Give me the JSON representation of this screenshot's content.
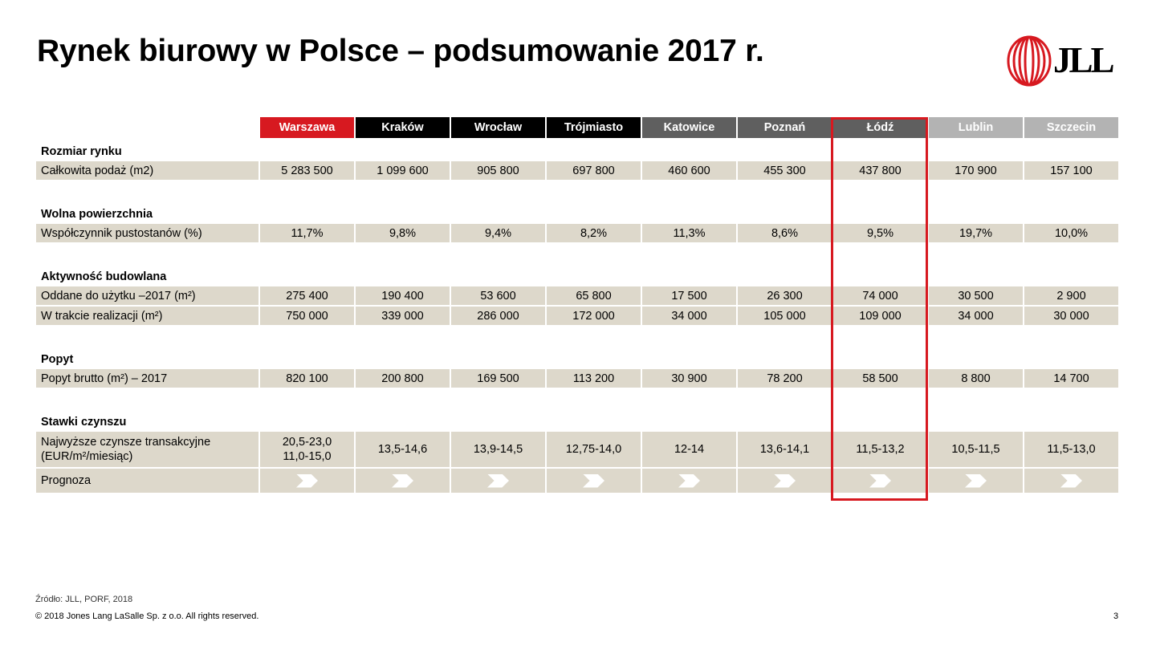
{
  "title": "Rynek biurowy w Polsce – podsumowanie 2017 r.",
  "logo": {
    "text": "JLL",
    "accent_color": "#d71920"
  },
  "columns": [
    {
      "name": "Warszawa",
      "color": "#d71920"
    },
    {
      "name": "Kraków",
      "color": "#000000"
    },
    {
      "name": "Wrocław",
      "color": "#000000"
    },
    {
      "name": "Trójmiasto",
      "color": "#000000"
    },
    {
      "name": "Katowice",
      "color": "#5f5f5f"
    },
    {
      "name": "Poznań",
      "color": "#5f5f5f"
    },
    {
      "name": "Łódź",
      "color": "#5f5f5f"
    },
    {
      "name": "Lublin",
      "color": "#b3b3b3"
    },
    {
      "name": "Szczecin",
      "color": "#b3b3b3"
    }
  ],
  "sections": [
    {
      "heading": "Rozmiar rynku",
      "rows": [
        {
          "label": "Całkowita podaż (m2)",
          "values": [
            "5 283 500",
            "1 099 600",
            "905 800",
            "697 800",
            "460 600",
            "455 300",
            "437 800",
            "170 900",
            "157 100"
          ]
        }
      ]
    },
    {
      "heading": "Wolna powierzchnia",
      "rows": [
        {
          "label": "Współczynnik pustostanów (%)",
          "values": [
            "11,7%",
            "9,8%",
            "9,4%",
            "8,2%",
            "11,3%",
            "8,6%",
            "9,5%",
            "19,7%",
            "10,0%"
          ]
        }
      ]
    },
    {
      "heading": "Aktywność budowlana",
      "rows": [
        {
          "label": "Oddane do użytku –2017 (m²)",
          "values": [
            "275 400",
            "190 400",
            "53 600",
            "65 800",
            "17 500",
            "26 300",
            "74 000",
            "30 500",
            "2 900"
          ]
        },
        {
          "label": "W trakcie realizacji (m²)",
          "values": [
            "750 000",
            "339 000",
            "286 000",
            "172 000",
            "34 000",
            "105 000",
            "109 000",
            "34 000",
            "30 000"
          ]
        }
      ]
    },
    {
      "heading": "Popyt",
      "rows": [
        {
          "label": "Popyt brutto (m²) – 2017",
          "values": [
            "820 100",
            "200 800",
            "169 500",
            "113 200",
            "30 900",
            "78 200",
            "58 500",
            "8 800",
            "14 700"
          ]
        }
      ]
    },
    {
      "heading": "Stawki czynszu",
      "rows": [
        {
          "label_lines": [
            "Najwyższe czynsze transakcyjne",
            "(EUR/m²/miesiąc)"
          ],
          "first_value_lines": [
            "20,5-23,0",
            "11,0-15,0"
          ],
          "values": [
            "13,5-14,6",
            "13,9-14,5",
            "12,75-14,0",
            "12-14",
            "13,6-14,1",
            "11,5-13,2",
            "10,5-11,5",
            "11,5-13,0"
          ]
        }
      ]
    }
  ],
  "forecast": {
    "label": "Prognoza",
    "icon": "chevron-right-icon",
    "trend": [
      "stable",
      "stable",
      "stable",
      "stable",
      "stable",
      "stable",
      "stable",
      "stable",
      "stable"
    ]
  },
  "highlighted_column": "Łódź",
  "footer": {
    "source": "Źródło: JLL, PORF, 2018",
    "copyright": "© 2018 Jones Lang LaSalle Sp. z o.o. All rights reserved.",
    "page_number": "3"
  }
}
